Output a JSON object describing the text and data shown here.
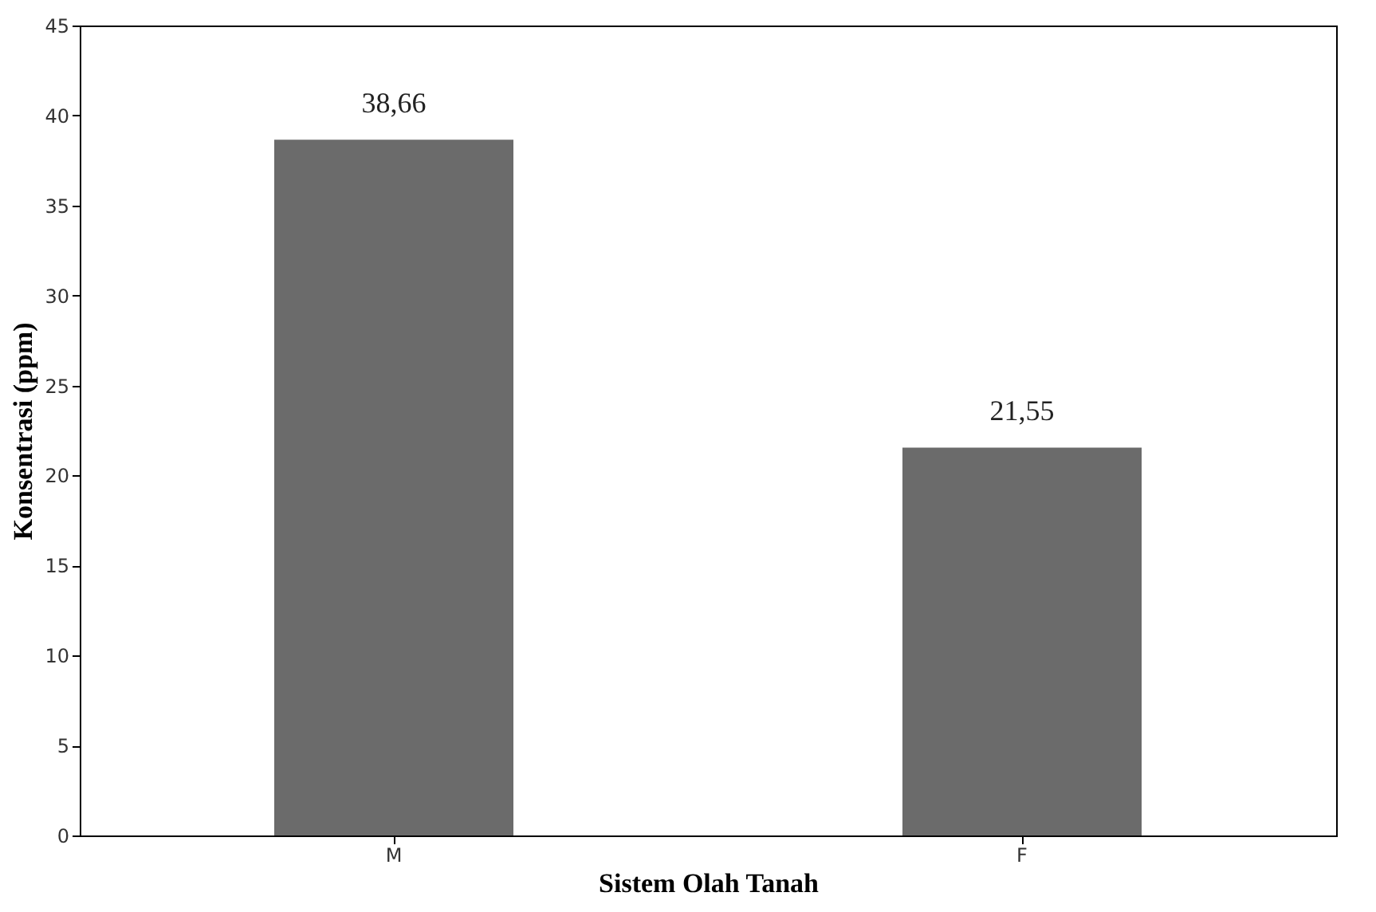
{
  "chart_data": {
    "type": "bar",
    "xlabel": "Sistem Olah Tanah",
    "ylabel": "Konsentrasi (ppm)",
    "categories": [
      "M",
      "F"
    ],
    "values": [
      38.66,
      21.55
    ],
    "value_labels": [
      "38,66",
      "21,55"
    ],
    "color": "#6b6b6b",
    "ylim": [
      0,
      45
    ],
    "yticks": [
      0,
      5,
      10,
      15,
      20,
      25,
      30,
      35,
      40,
      45
    ],
    "grid": false
  }
}
